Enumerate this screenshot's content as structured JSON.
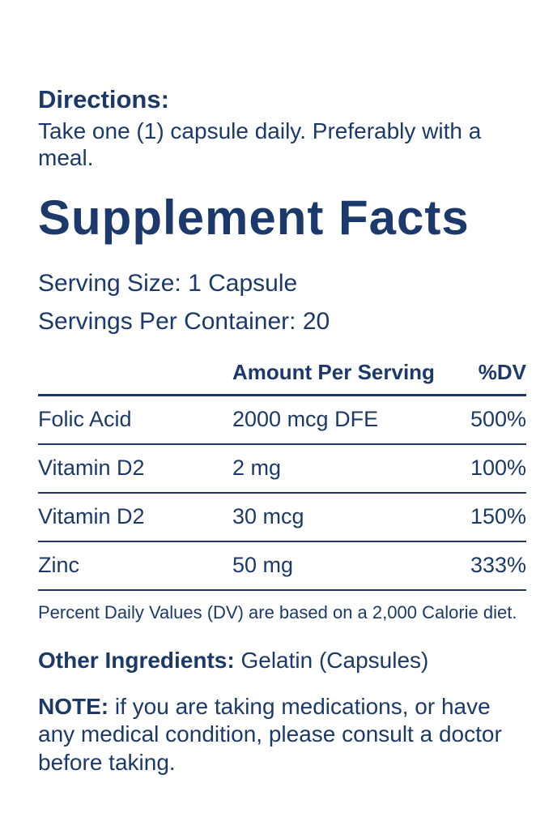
{
  "label": {
    "directions": {
      "heading": "Directions:",
      "body": "Take one (1) capsule daily. Preferably with a meal."
    },
    "title": "Supplement Facts",
    "serving_size": "Serving Size: 1 Capsule",
    "servings_per_container": "Servings Per Container: 20",
    "table": {
      "headers": {
        "nutrient": "",
        "amount": "Amount Per Serving",
        "dv": "%DV"
      },
      "rows": [
        {
          "name": "Folic Acid",
          "amount": "2000 mcg DFE",
          "dv": "500%"
        },
        {
          "name": "Vitamin D2",
          "amount": "2 mg",
          "dv": "100%"
        },
        {
          "name": "Vitamin D2",
          "amount": "30 mcg",
          "dv": "150%"
        },
        {
          "name": "Zinc",
          "amount": "50 mg",
          "dv": "333%"
        }
      ]
    },
    "footnote": "Percent Daily Values (DV) are based on a 2,000 Calorie diet.",
    "other_ingredients": {
      "heading": "Other Ingredients:",
      "body": "Gelatin (Capsules)"
    },
    "note": {
      "heading": "NOTE:",
      "body": "if you are taking medications, or have any medical condition, please consult a doctor before taking."
    },
    "colors": {
      "text_navy": "#1b3a6b",
      "background": "#ffffff"
    }
  }
}
